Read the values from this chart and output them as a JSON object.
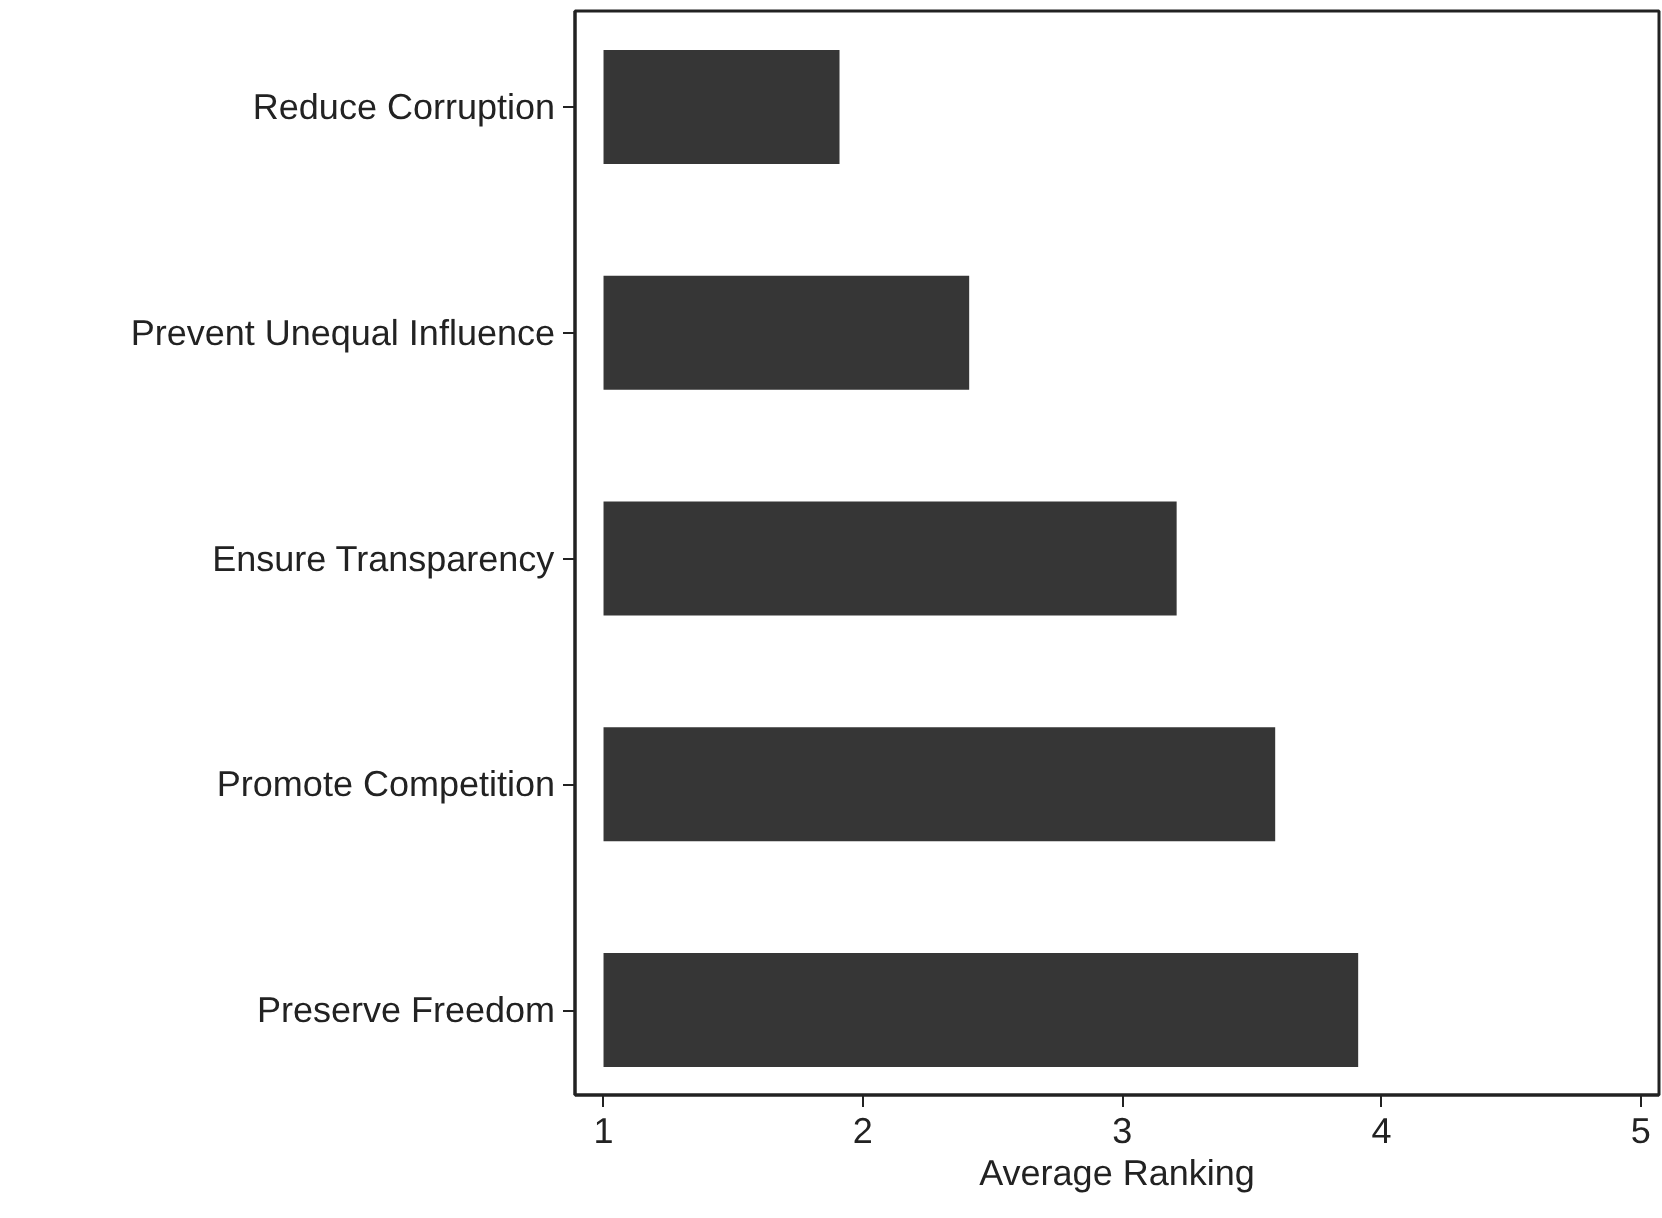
{
  "chart_data": {
    "type": "bar",
    "orientation": "horizontal",
    "xlabel": "Average Ranking",
    "categories": [
      "Reduce Corruption",
      "Prevent Unequal Influence",
      "Ensure Transparency",
      "Promote Competition",
      "Preserve Freedom"
    ],
    "base": [
      1,
      1,
      1,
      1,
      1
    ],
    "values": [
      0.91,
      1.41,
      2.21,
      2.59,
      2.91
    ],
    "color": "#363636",
    "xlim": [
      0.89,
      5.07
    ],
    "xticks": [
      1,
      2,
      3,
      4,
      5
    ],
    "grid": false
  }
}
